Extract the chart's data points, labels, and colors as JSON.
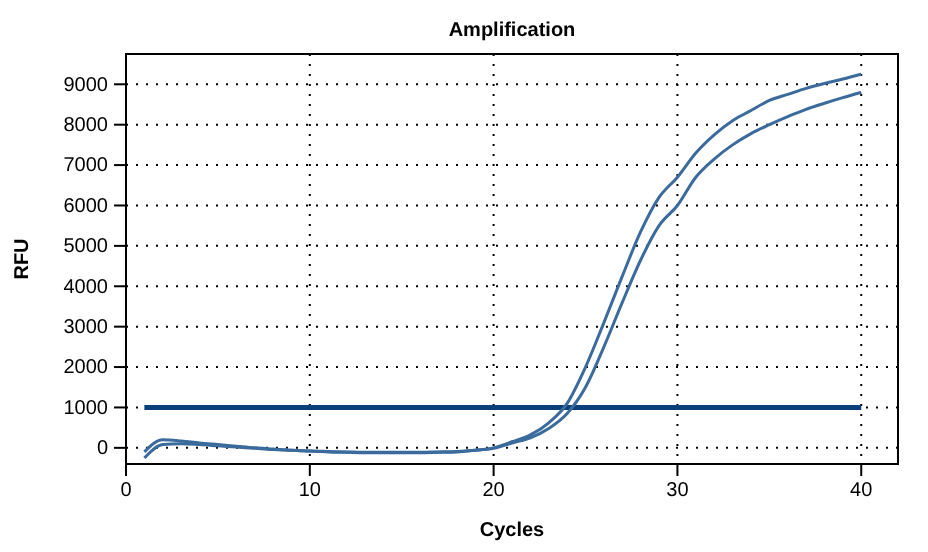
{
  "chart_data": {
    "type": "line",
    "title": "Amplification",
    "xlabel": "Cycles",
    "ylabel": "RFU",
    "x": [
      1,
      2,
      3,
      4,
      5,
      6,
      7,
      8,
      9,
      10,
      11,
      12,
      13,
      14,
      15,
      16,
      17,
      18,
      19,
      20,
      21,
      22,
      23,
      24,
      25,
      26,
      27,
      28,
      29,
      30,
      31,
      32,
      33,
      34,
      35,
      36,
      37,
      38,
      39,
      40
    ],
    "series": [
      {
        "color": "#3b6a9c",
        "values": [
          -100,
          200,
          170,
          120,
          80,
          40,
          0,
          -30,
          -60,
          -80,
          -100,
          -110,
          -120,
          -120,
          -120,
          -120,
          -110,
          -100,
          -60,
          0,
          150,
          320,
          620,
          1100,
          2000,
          3100,
          4250,
          5350,
          6200,
          6700,
          7300,
          7750,
          8100,
          8350,
          8600,
          8750,
          8900,
          9020,
          9130,
          9250
        ]
      },
      {
        "color": "#3b6a9c",
        "values": [
          -250,
          80,
          100,
          80,
          50,
          20,
          -10,
          -40,
          -60,
          -80,
          -90,
          -100,
          -110,
          -110,
          -110,
          -110,
          -100,
          -90,
          -60,
          -10,
          120,
          250,
          480,
          850,
          1500,
          2500,
          3600,
          4650,
          5500,
          6000,
          6700,
          7150,
          7500,
          7780,
          8000,
          8200,
          8380,
          8530,
          8670,
          8800
        ]
      }
    ],
    "xlim": [
      0,
      42
    ],
    "ylim": [
      -400,
      9750
    ],
    "xticks": [
      0,
      10,
      20,
      30,
      40
    ],
    "yticks": [
      0,
      1000,
      2000,
      3000,
      4000,
      5000,
      6000,
      7000,
      8000,
      9000
    ],
    "ref_lines": [
      {
        "axis": "y",
        "value": 1000,
        "color": "#0b3f7a"
      }
    ],
    "grid": true,
    "line_style": "solid"
  }
}
